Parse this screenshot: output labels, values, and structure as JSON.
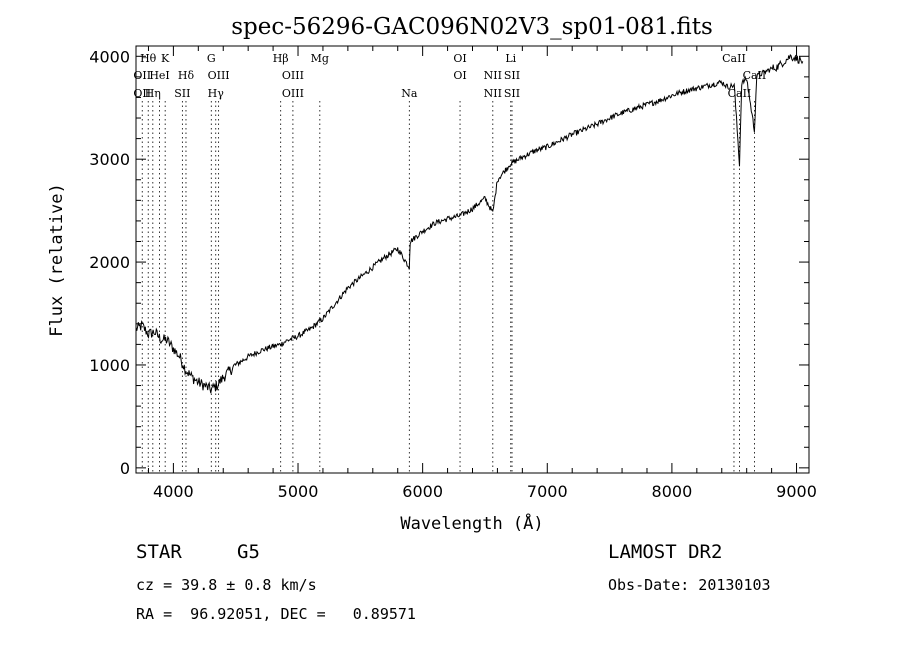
{
  "chart_data": {
    "type": "line",
    "title": "spec-56296-GAC096N02V3_sp01-081.fits",
    "xlabel": "Wavelength (Å)",
    "ylabel": "Flux (relative)",
    "xlim": [
      3700,
      9100
    ],
    "ylim": [
      -50,
      4100
    ],
    "xticks": [
      4000,
      5000,
      6000,
      7000,
      8000,
      9000
    ],
    "yticks": [
      0,
      1000,
      2000,
      3000,
      4000
    ],
    "grid": false,
    "series": [
      {
        "x": [
          3700,
          3750,
          3800,
          3850,
          3900,
          3950,
          4000,
          4050,
          4100,
          4150,
          4200,
          4250,
          4300,
          4350,
          4400,
          4500,
          4600,
          4700,
          4800,
          4860,
          4900,
          5000,
          5100,
          5200,
          5300,
          5400,
          5500,
          5600,
          5700,
          5800,
          5893,
          5900,
          6000,
          6100,
          6200,
          6300,
          6400,
          6500,
          6563,
          6600,
          6700,
          6800,
          6900,
          7000,
          7100,
          7200,
          7300,
          7400,
          7500,
          7600,
          7700,
          7800,
          7900,
          8000,
          8100,
          8200,
          8300,
          8400,
          8450,
          8500,
          8542,
          8560,
          8600,
          8662,
          8680,
          8700,
          8750,
          8800,
          8850,
          8900,
          8950,
          9000,
          9050
        ],
        "y": [
          1350,
          1380,
          1300,
          1320,
          1250,
          1240,
          1160,
          1080,
          950,
          880,
          830,
          800,
          760,
          800,
          880,
          1000,
          1080,
          1140,
          1180,
          1200,
          1230,
          1280,
          1350,
          1450,
          1600,
          1750,
          1850,
          1950,
          2050,
          2130,
          1950,
          2200,
          2300,
          2380,
          2420,
          2450,
          2520,
          2620,
          2480,
          2800,
          2950,
          3020,
          3080,
          3120,
          3180,
          3240,
          3290,
          3340,
          3400,
          3450,
          3490,
          3530,
          3570,
          3620,
          3660,
          3690,
          3720,
          3750,
          3700,
          3720,
          2950,
          3740,
          3780,
          3280,
          3800,
          3820,
          3850,
          3880,
          3900,
          3950,
          4000,
          3980,
          3950
        ]
      }
    ],
    "line_markers": [
      {
        "w": 3750,
        "label": "OII",
        "row": 1
      },
      {
        "w": 3750,
        "label": "OII",
        "row": 2
      },
      {
        "w": 3798,
        "label": "Hθ",
        "row": 0
      },
      {
        "w": 3835,
        "label": "Hη",
        "row": 2
      },
      {
        "w": 3889,
        "label": "HeI",
        "row": 1
      },
      {
        "w": 3934,
        "label": "K",
        "row": 0
      },
      {
        "w": 4101,
        "label": "Hδ",
        "row": 1
      },
      {
        "w": 4072,
        "label": "SII",
        "row": 2
      },
      {
        "w": 4304,
        "label": "G",
        "row": 0
      },
      {
        "w": 4340,
        "label": "Hγ",
        "row": 2
      },
      {
        "w": 4363,
        "label": "OIII",
        "row": 1
      },
      {
        "w": 4861,
        "label": "Hβ",
        "row": 0
      },
      {
        "w": 4959,
        "label": "OIII",
        "row": 1
      },
      {
        "w": 4959,
        "label": "OIII",
        "row": 2
      },
      {
        "w": 5175,
        "label": "Mg",
        "row": 0
      },
      {
        "w": 5893,
        "label": "Na",
        "row": 2
      },
      {
        "w": 6300,
        "label": "OI",
        "row": 0
      },
      {
        "w": 6300,
        "label": "OI",
        "row": 1
      },
      {
        "w": 6563,
        "label": "NII",
        "row": 1
      },
      {
        "w": 6563,
        "label": "NII",
        "row": 2
      },
      {
        "w": 6707,
        "label": "Li",
        "row": 0
      },
      {
        "w": 6717,
        "label": "SII",
        "row": 1
      },
      {
        "w": 6717,
        "label": "SII",
        "row": 2
      },
      {
        "w": 8498,
        "label": "CaII",
        "row": 0
      },
      {
        "w": 8542,
        "label": "CaII",
        "row": 2
      },
      {
        "w": 8662,
        "label": "CaII",
        "row": 1
      }
    ]
  },
  "info": {
    "class": "STAR",
    "subclass": "G5",
    "survey": "LAMOST DR2",
    "cz": "cz = 39.8 ± 0.8 km/s",
    "obs_date": "Obs-Date: 20130103",
    "coords": "RA =  96.92051, DEC =   0.89571"
  }
}
